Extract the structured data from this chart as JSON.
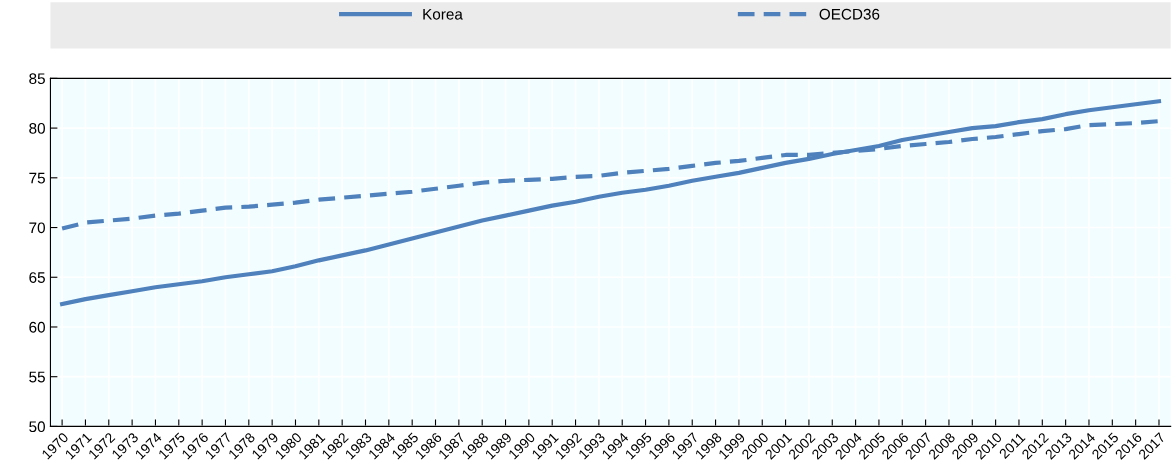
{
  "chart_data": {
    "type": "line",
    "categories": [
      "1970",
      "1971",
      "1972",
      "1973",
      "1974",
      "1975",
      "1976",
      "1977",
      "1978",
      "1979",
      "1980",
      "1981",
      "1982",
      "1983",
      "1984",
      "1985",
      "1986",
      "1987",
      "1988",
      "1989",
      "1990",
      "1991",
      "1992",
      "1993",
      "1994",
      "1995",
      "1996",
      "1997",
      "1998",
      "1999",
      "2000",
      "2001",
      "2002",
      "2003",
      "2004",
      "2005",
      "2006",
      "2007",
      "2008",
      "2009",
      "2010",
      "2011",
      "2012",
      "2013",
      "2014",
      "2015",
      "2016",
      "2017"
    ],
    "series": [
      {
        "name": "Korea",
        "color": "#4f81bd",
        "line_style": "solid",
        "values": [
          62.3,
          62.8,
          63.2,
          63.6,
          64.0,
          64.3,
          64.6,
          65.0,
          65.3,
          65.6,
          66.1,
          66.7,
          67.2,
          67.7,
          68.3,
          68.9,
          69.5,
          70.1,
          70.7,
          71.2,
          71.7,
          72.2,
          72.6,
          73.1,
          73.5,
          73.8,
          74.2,
          74.7,
          75.1,
          75.5,
          76.0,
          76.5,
          76.9,
          77.4,
          77.8,
          78.2,
          78.8,
          79.2,
          79.6,
          80.0,
          80.2,
          80.6,
          80.9,
          81.4,
          81.8,
          82.1,
          82.4,
          82.7
        ]
      },
      {
        "name": "OECD36",
        "color": "#4f81bd",
        "line_style": "dashed",
        "values": [
          69.9,
          70.5,
          70.7,
          70.9,
          71.2,
          71.4,
          71.7,
          72.0,
          72.1,
          72.3,
          72.5,
          72.8,
          73.0,
          73.2,
          73.4,
          73.6,
          73.9,
          74.2,
          74.5,
          74.7,
          74.8,
          74.9,
          75.1,
          75.2,
          75.5,
          75.7,
          75.9,
          76.2,
          76.5,
          76.7,
          77.0,
          77.3,
          77.3,
          77.5,
          77.7,
          77.9,
          78.2,
          78.4,
          78.6,
          78.9,
          79.1,
          79.4,
          79.7,
          79.9,
          80.3,
          80.4,
          80.5,
          80.7
        ]
      }
    ],
    "ylim": [
      50,
      85
    ],
    "yticks": [
      50,
      55,
      60,
      65,
      70,
      75,
      80,
      85
    ],
    "grid": true,
    "legend": "top"
  }
}
